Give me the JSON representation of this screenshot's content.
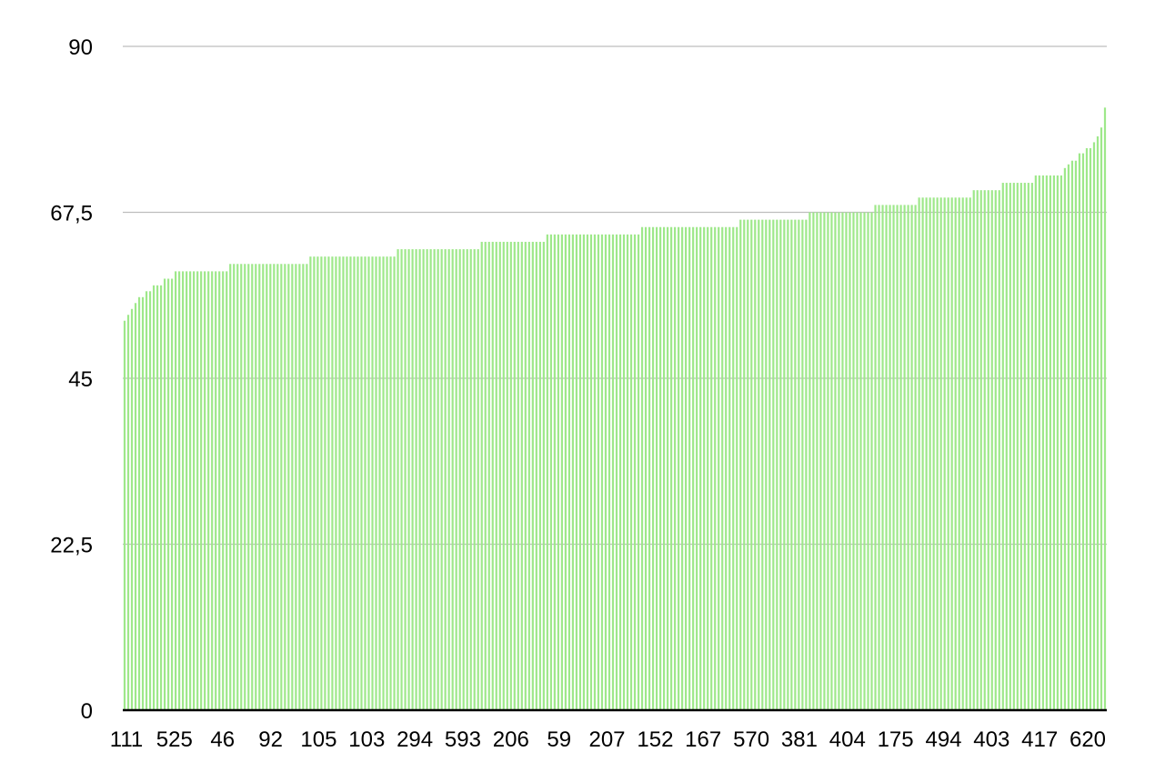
{
  "chart_data": {
    "type": "bar",
    "title": "",
    "xlabel": "",
    "ylabel": "",
    "ylim": [
      0,
      90
    ],
    "y_ticks": [
      0,
      22.5,
      45,
      67.5,
      90
    ],
    "y_tick_labels": [
      "0",
      "22,5",
      "45",
      "67,5",
      "90"
    ],
    "x_tick_labels": [
      "111",
      "525",
      "46",
      "92",
      "105",
      "103",
      "294",
      "593",
      "206",
      "59",
      "207",
      "152",
      "167",
      "570",
      "381",
      "404",
      "175",
      "494",
      "403",
      "417",
      "620"
    ],
    "grid": true,
    "legend": "none",
    "bar_color": "#9ee88a",
    "n_bars": 270,
    "value_runs": [
      {
        "value": 52.8,
        "count": 1
      },
      {
        "value": 53.6,
        "count": 1
      },
      {
        "value": 54.4,
        "count": 1
      },
      {
        "value": 55.2,
        "count": 1
      },
      {
        "value": 56.0,
        "count": 2
      },
      {
        "value": 56.8,
        "count": 2
      },
      {
        "value": 57.6,
        "count": 3
      },
      {
        "value": 58.5,
        "count": 3
      },
      {
        "value": 59.5,
        "count": 15
      },
      {
        "value": 60.5,
        "count": 22
      },
      {
        "value": 61.5,
        "count": 24
      },
      {
        "value": 62.5,
        "count": 23
      },
      {
        "value": 63.5,
        "count": 18
      },
      {
        "value": 64.5,
        "count": 26
      },
      {
        "value": 65.5,
        "count": 27
      },
      {
        "value": 66.5,
        "count": 19
      },
      {
        "value": 67.5,
        "count": 18
      },
      {
        "value": 68.5,
        "count": 12
      },
      {
        "value": 69.5,
        "count": 15
      },
      {
        "value": 70.5,
        "count": 8
      },
      {
        "value": 71.5,
        "count": 9
      },
      {
        "value": 72.5,
        "count": 8
      },
      {
        "value": 73.5,
        "count": 1
      },
      {
        "value": 74.0,
        "count": 1
      },
      {
        "value": 74.5,
        "count": 2
      },
      {
        "value": 75.5,
        "count": 2
      },
      {
        "value": 76.2,
        "count": 2
      },
      {
        "value": 77.0,
        "count": 1
      },
      {
        "value": 77.8,
        "count": 1
      },
      {
        "value": 79.0,
        "count": 1
      },
      {
        "value": 81.7,
        "count": 1
      }
    ]
  }
}
